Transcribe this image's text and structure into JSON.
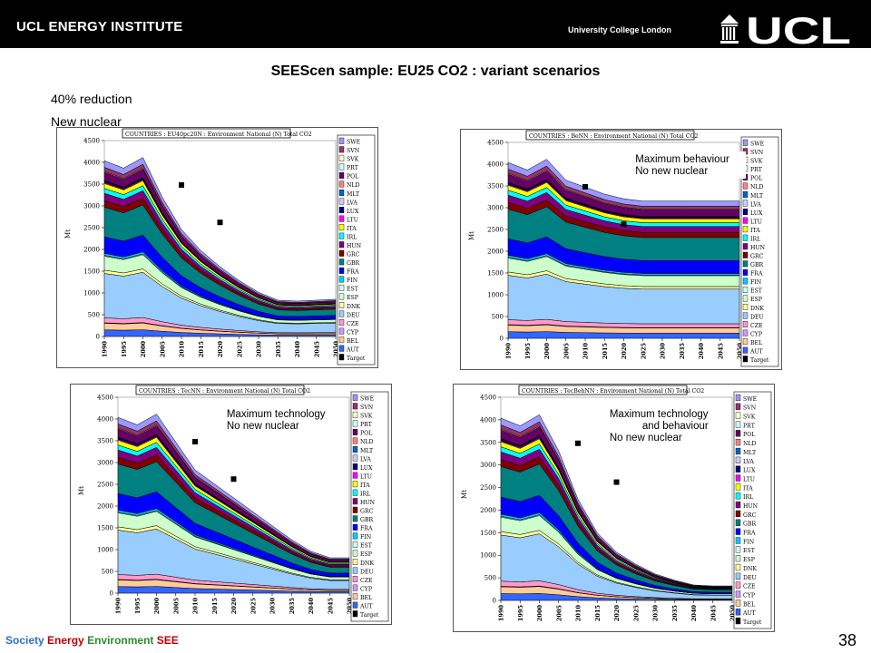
{
  "header": {
    "institute": "UCL ENERGY INSTITUTE",
    "university": "University College London",
    "logo_text": "UCL"
  },
  "slide": {
    "title": "SEEScen sample: EU25 CO2 : variant scenarios",
    "line1": "40% reduction",
    "line2": "New nuclear",
    "page_number": "38"
  },
  "footer": {
    "society": "Society",
    "energy": "Energy",
    "environment": "Environment",
    "see": "SEE",
    "colors": {
      "society": "#2d6fc9",
      "energy": "#c00000",
      "environment": "#2e8b2e",
      "see": "#c00000"
    }
  },
  "chart_data": [
    {
      "type": "area",
      "title": "COUNTRIES : EU40pc20N : Environment National (N) Total CO2",
      "ylabel": "Mt",
      "ylim": [
        0,
        4500
      ],
      "yticks": [
        "0",
        "500",
        "1000",
        "1500",
        "2000",
        "2500",
        "3000",
        "3500",
        "4000",
        "4500"
      ],
      "x": [
        "1990",
        "1995",
        "2000",
        "2005",
        "2010",
        "2015",
        "2020",
        "2025",
        "2030",
        "2035",
        "2040",
        "2045",
        "2050"
      ],
      "annotations": [],
      "totals": [
        3780,
        3620,
        3850,
        3000,
        2300,
        1850,
        1500,
        1200,
        950,
        780,
        760,
        780,
        800
      ],
      "target": [
        {
          "x": "2010",
          "y": 3480
        },
        {
          "x": "2020",
          "y": 2620
        }
      ]
    },
    {
      "type": "area",
      "title": "COUNTRIES : BeNN : Environment National (N) Total CO2",
      "ylabel": "Mt",
      "ylim": [
        0,
        4500
      ],
      "yticks": [
        "0",
        "500",
        "1000",
        "1500",
        "2000",
        "2500",
        "3000",
        "3500",
        "4000",
        "4500"
      ],
      "x": [
        "1990",
        "1995",
        "2000",
        "2005",
        "2010",
        "2015",
        "2020",
        "2025",
        "2030",
        "2035",
        "2040",
        "2045",
        "2050"
      ],
      "annotations": [
        "Maximum behaviour",
        "No new nuclear"
      ],
      "totals": [
        3780,
        3620,
        3850,
        3400,
        3250,
        3100,
        3000,
        2950,
        2950,
        2950,
        2950,
        2950,
        2950
      ],
      "target": [
        {
          "x": "2010",
          "y": 3480
        },
        {
          "x": "2020",
          "y": 2620
        }
      ]
    },
    {
      "type": "area",
      "title": "COUNTRIES : TecNN : Environment National (N) Total CO2",
      "ylabel": "Mt",
      "ylim": [
        0,
        4500
      ],
      "yticks": [
        "0",
        "500",
        "1000",
        "1500",
        "2000",
        "2500",
        "3000",
        "3500",
        "4000",
        "4500"
      ],
      "x": [
        "1990",
        "1995",
        "2000",
        "2005",
        "2010",
        "2015",
        "2020",
        "2025",
        "2030",
        "2035",
        "2040",
        "2045",
        "2050"
      ],
      "annotations": [
        "Maximum technology",
        "No new nuclear"
      ],
      "totals": [
        3780,
        3620,
        3850,
        3250,
        2650,
        2350,
        2050,
        1750,
        1450,
        1150,
        900,
        760,
        760
      ],
      "target": [
        {
          "x": "2010",
          "y": 3480
        },
        {
          "x": "2020",
          "y": 2620
        }
      ]
    },
    {
      "type": "area",
      "title": "COUNTRIES : TecBehNN : Environment National (N) Total CO2",
      "ylabel": "Mt",
      "ylim": [
        0,
        4500
      ],
      "yticks": [
        "0",
        "500",
        "1000",
        "1500",
        "2000",
        "2500",
        "3000",
        "3500",
        "4000",
        "4500"
      ],
      "x": [
        "1990",
        "1995",
        "2000",
        "2005",
        "2010",
        "2015",
        "2020",
        "2025",
        "2030",
        "2035",
        "2040",
        "2045",
        "2050"
      ],
      "annotations": [
        "Maximum technology",
        "and behaviour",
        "No new nuclear"
      ],
      "totals": [
        3780,
        3620,
        3850,
        3100,
        2100,
        1400,
        1000,
        750,
        550,
        420,
        320,
        300,
        300
      ],
      "target": [
        {
          "x": "2010",
          "y": 3480
        },
        {
          "x": "2020",
          "y": 2620
        }
      ]
    }
  ],
  "legend": [
    "SWE",
    "SVN",
    "SVK",
    "PRT",
    "POL",
    "NLD",
    "MLT",
    "LVA",
    "LUX",
    "LTU",
    "ITA",
    "IRL",
    "HUN",
    "GRC",
    "GBR",
    "FRA",
    "FIN",
    "EST",
    "ESP",
    "DNK",
    "DEU",
    "CZE",
    "CYP",
    "BEL",
    "AUT",
    "Target"
  ],
  "series_colors": [
    "#9999ff",
    "#993366",
    "#ffffcc",
    "#ccffff",
    "#660066",
    "#ff8080",
    "#0066cc",
    "#ccccff",
    "#000080",
    "#ff00ff",
    "#ffff00",
    "#00ffff",
    "#800080",
    "#800000",
    "#008080",
    "#0000ff",
    "#00ccff",
    "#ccffff",
    "#ccffcc",
    "#ffff99",
    "#99ccff",
    "#ff99cc",
    "#cc99ff",
    "#ffcc99",
    "#3366ff",
    "#000000"
  ],
  "band_shares": [
    0.04,
    0.025,
    0.005,
    0.0,
    0.05,
    0.0,
    0.003,
    0.003,
    0.006,
    0.006,
    0.03,
    0.03,
    0.045,
    0.04,
    0.18,
    0.1,
    0.012,
    0.005,
    0.085,
    0.02,
    0.27,
    0.03,
    0.003,
    0.04,
    0.04
  ]
}
